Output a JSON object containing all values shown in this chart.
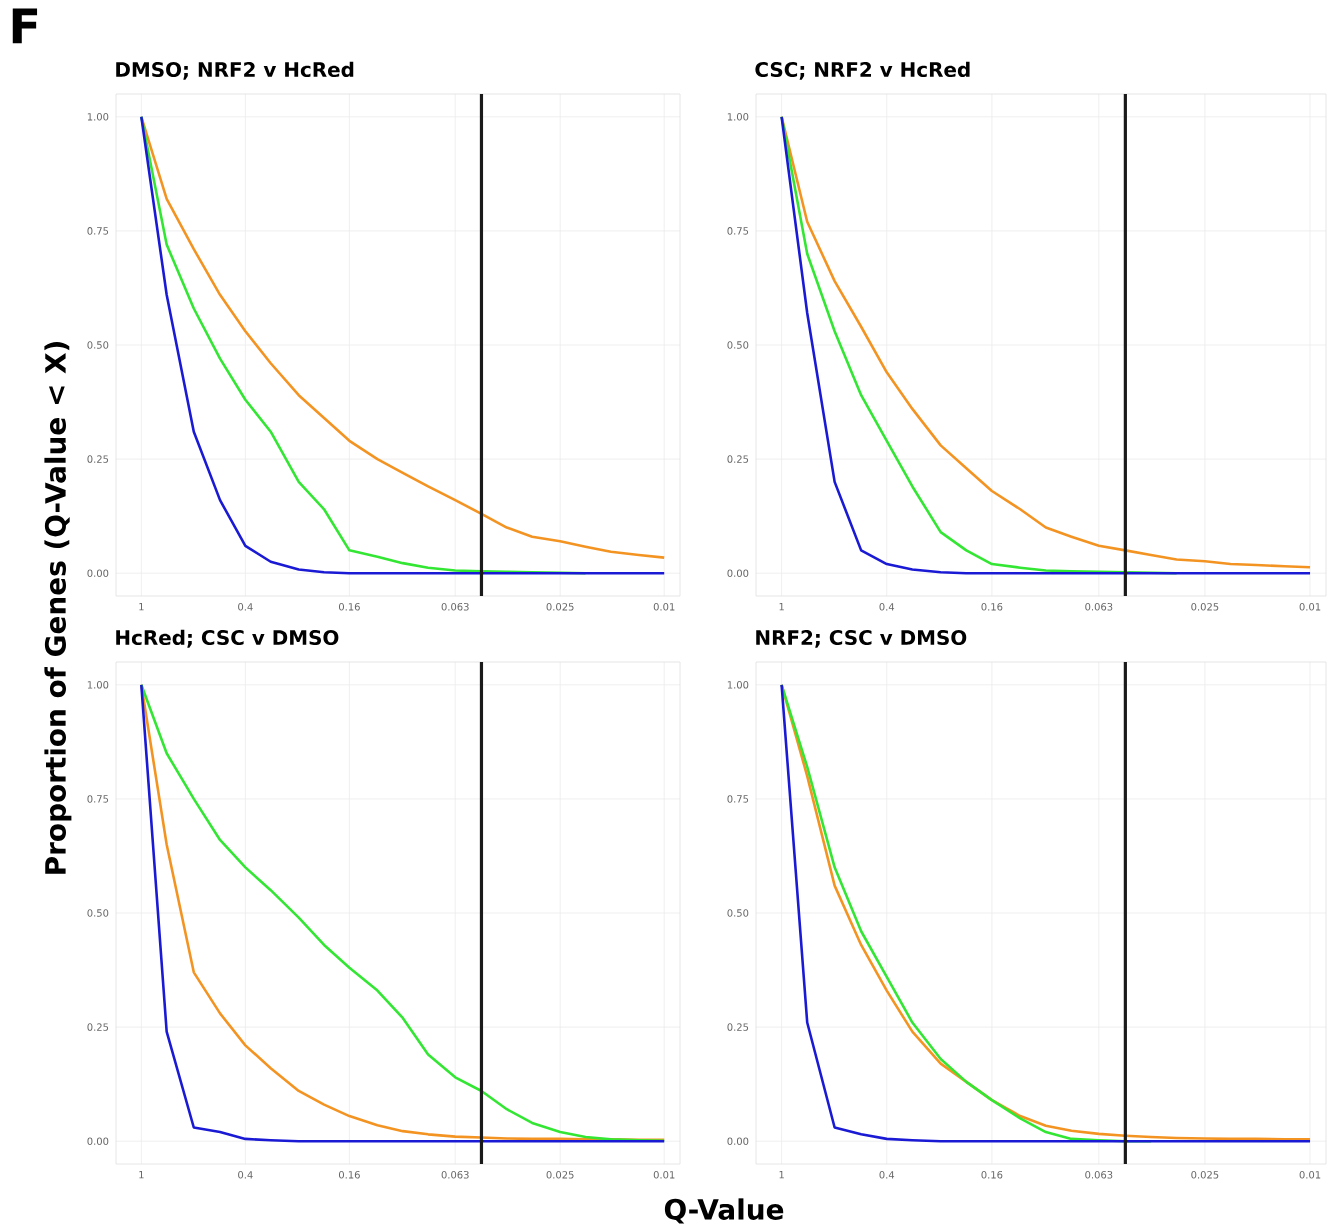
{
  "chart_data": [
    {
      "type": "line",
      "title": "DMSO; NRF2 v HcRed",
      "ylabel": "Proportion of Genes (Q-Value < X)",
      "annotations": [
        "F"
      ],
      "log": "x",
      "grid": true,
      "xlim": [
        1.25,
        0.0087
      ],
      "ylim": [
        -0.05,
        1.05
      ],
      "xticks": [
        1,
        0.4,
        0.16,
        0.063,
        0.025,
        0.01
      ],
      "yticks": [
        {
          "value": 0,
          "label": "0.00"
        },
        {
          "value": 0.25,
          "label": "0.25"
        },
        {
          "value": 0.5,
          "label": "0.50"
        },
        {
          "value": 0.75,
          "label": "0.75"
        },
        {
          "value": 1,
          "label": "1.00"
        }
      ],
      "ref_lines": [
        {
          "axis": "x",
          "value": 0.05,
          "color": "#1a1a1a"
        }
      ],
      "x": [
        1,
        0.8,
        0.63,
        0.5,
        0.4,
        0.32,
        0.25,
        0.2,
        0.16,
        0.125,
        0.1,
        0.08,
        0.063,
        0.05,
        0.04,
        0.032,
        0.025,
        0.02,
        0.016,
        0.0125,
        0.01
      ],
      "series": [
        {
          "color": "#f39422",
          "values": [
            1,
            0.82,
            0.71,
            0.61,
            0.53,
            0.46,
            0.39,
            0.34,
            0.29,
            0.25,
            0.22,
            0.19,
            0.16,
            0.13,
            0.1,
            0.08,
            0.07,
            0.058,
            0.047,
            0.04,
            0.034
          ]
        },
        {
          "color": "#33e633",
          "values": [
            1,
            0.72,
            0.58,
            0.47,
            0.38,
            0.31,
            0.2,
            0.14,
            0.05,
            0.036,
            0.022,
            0.012,
            0.006,
            0.004,
            0.003,
            0.002,
            0.001,
            0,
            null,
            null,
            null
          ]
        },
        {
          "color": "#1a1ad4",
          "values": [
            1,
            0.61,
            0.31,
            0.16,
            0.06,
            0.025,
            0.008,
            0.002,
            0,
            0,
            0,
            0,
            0,
            0,
            0,
            0,
            0,
            0,
            0,
            0,
            0
          ]
        }
      ]
    },
    {
      "type": "line",
      "title": "CSC; NRF2 v HcRed",
      "log": "x",
      "grid": true,
      "xlim": [
        1.25,
        0.0087
      ],
      "ylim": [
        -0.05,
        1.05
      ],
      "xticks": [
        1,
        0.4,
        0.16,
        0.063,
        0.025,
        0.01
      ],
      "yticks": [
        {
          "value": 0,
          "label": "0.00"
        },
        {
          "value": 0.25,
          "label": "0.25"
        },
        {
          "value": 0.5,
          "label": "0.50"
        },
        {
          "value": 0.75,
          "label": "0.75"
        },
        {
          "value": 1,
          "label": "1.00"
        }
      ],
      "ref_lines": [
        {
          "axis": "x",
          "value": 0.05,
          "color": "#1a1a1a"
        }
      ],
      "x": [
        1,
        0.8,
        0.63,
        0.5,
        0.4,
        0.32,
        0.25,
        0.2,
        0.16,
        0.125,
        0.1,
        0.08,
        0.063,
        0.05,
        0.04,
        0.032,
        0.025,
        0.02,
        0.016,
        0.0125,
        0.01
      ],
      "series": [
        {
          "color": "#f39422",
          "values": [
            1,
            0.77,
            0.64,
            0.54,
            0.44,
            0.36,
            0.28,
            0.23,
            0.18,
            0.14,
            0.1,
            0.08,
            0.06,
            0.05,
            0.04,
            0.03,
            0.026,
            0.02,
            0.018,
            0.015,
            0.013
          ]
        },
        {
          "color": "#33e633",
          "values": [
            1,
            0.7,
            0.53,
            0.39,
            0.29,
            0.19,
            0.09,
            0.05,
            0.02,
            0.012,
            0.006,
            0.004,
            0.003,
            0.002,
            0.001,
            0,
            null,
            null,
            null,
            null,
            null
          ]
        },
        {
          "color": "#1a1ad4",
          "values": [
            1,
            0.57,
            0.2,
            0.05,
            0.02,
            0.008,
            0.002,
            0,
            0,
            0,
            0,
            0,
            0,
            0,
            0,
            0,
            0,
            0,
            0,
            0,
            0
          ]
        }
      ]
    },
    {
      "type": "line",
      "title": "HcRed; CSC v DMSO",
      "xlabel": "Q-Value",
      "log": "x",
      "grid": true,
      "xlim": [
        1.25,
        0.0087
      ],
      "ylim": [
        -0.05,
        1.05
      ],
      "xticks": [
        1,
        0.4,
        0.16,
        0.063,
        0.025,
        0.01
      ],
      "yticks": [
        {
          "value": 0,
          "label": "0.00"
        },
        {
          "value": 0.25,
          "label": "0.25"
        },
        {
          "value": 0.5,
          "label": "0.50"
        },
        {
          "value": 0.75,
          "label": "0.75"
        },
        {
          "value": 1,
          "label": "1.00"
        }
      ],
      "ref_lines": [
        {
          "axis": "x",
          "value": 0.05,
          "color": "#1a1a1a"
        }
      ],
      "x": [
        1,
        0.8,
        0.63,
        0.5,
        0.4,
        0.32,
        0.25,
        0.2,
        0.16,
        0.125,
        0.1,
        0.08,
        0.063,
        0.05,
        0.04,
        0.032,
        0.025,
        0.02,
        0.016,
        0.0125,
        0.01
      ],
      "series": [
        {
          "color": "#f39422",
          "values": [
            1,
            0.65,
            0.37,
            0.28,
            0.21,
            0.16,
            0.11,
            0.08,
            0.055,
            0.035,
            0.022,
            0.015,
            0.01,
            0.008,
            0.006,
            0.005,
            0.005,
            0.004,
            0.004,
            0.003,
            0.003
          ]
        },
        {
          "color": "#33e633",
          "values": [
            1,
            0.85,
            0.75,
            0.66,
            0.6,
            0.55,
            0.49,
            0.43,
            0.38,
            0.33,
            0.27,
            0.19,
            0.14,
            0.11,
            0.07,
            0.04,
            0.02,
            0.009,
            0.004,
            0.002,
            0.001
          ]
        },
        {
          "color": "#1a1ad4",
          "values": [
            1,
            0.24,
            0.03,
            0.02,
            0.005,
            0.002,
            0,
            0,
            0,
            0,
            0,
            0,
            0,
            0,
            0,
            0,
            0,
            0,
            0,
            0,
            0
          ]
        }
      ]
    },
    {
      "type": "line",
      "title": "NRF2; CSC v DMSO",
      "log": "x",
      "grid": true,
      "xlim": [
        1.25,
        0.0087
      ],
      "ylim": [
        -0.05,
        1.05
      ],
      "xticks": [
        1,
        0.4,
        0.16,
        0.063,
        0.025,
        0.01
      ],
      "yticks": [
        {
          "value": 0,
          "label": "0.00"
        },
        {
          "value": 0.25,
          "label": "0.25"
        },
        {
          "value": 0.5,
          "label": "0.50"
        },
        {
          "value": 0.75,
          "label": "0.75"
        },
        {
          "value": 1,
          "label": "1.00"
        }
      ],
      "ref_lines": [
        {
          "axis": "x",
          "value": 0.05,
          "color": "#1a1a1a"
        }
      ],
      "x": [
        1,
        0.8,
        0.63,
        0.5,
        0.4,
        0.32,
        0.25,
        0.2,
        0.16,
        0.125,
        0.1,
        0.08,
        0.063,
        0.05,
        0.04,
        0.032,
        0.025,
        0.02,
        0.016,
        0.0125,
        0.01
      ],
      "series": [
        {
          "color": "#f39422",
          "values": [
            1,
            0.8,
            0.56,
            0.43,
            0.33,
            0.24,
            0.17,
            0.13,
            0.09,
            0.055,
            0.034,
            0.023,
            0.016,
            0.012,
            0.009,
            0.007,
            0.006,
            0.005,
            0.005,
            0.004,
            0.004
          ]
        },
        {
          "color": "#33e633",
          "values": [
            1,
            0.82,
            0.6,
            0.46,
            0.36,
            0.26,
            0.18,
            0.13,
            0.09,
            0.05,
            0.02,
            0.005,
            0.002,
            0,
            0,
            null,
            null,
            null,
            null,
            null,
            null
          ]
        },
        {
          "color": "#1a1ad4",
          "values": [
            1,
            0.26,
            0.03,
            0.015,
            0.005,
            0.002,
            0,
            0,
            0,
            0,
            0,
            0,
            0,
            0,
            0,
            0,
            0,
            0,
            0,
            0,
            0
          ]
        }
      ]
    }
  ]
}
